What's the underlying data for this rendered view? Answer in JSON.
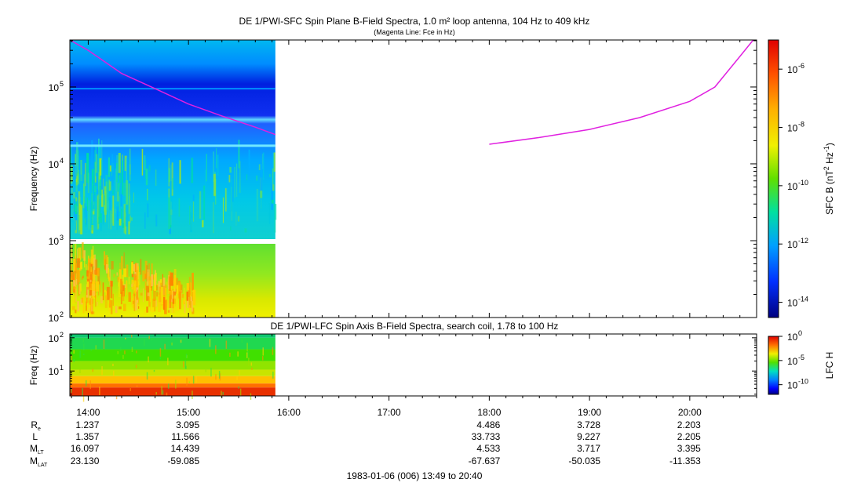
{
  "chart_data": [
    {
      "type": "heatmap",
      "title": "DE 1/PWI-SFC  Spin Plane B-Field Spectra, 1.0 m² loop antenna, 104 Hz to 409 kHz",
      "subtitle": "(Magenta Line: Fce in Hz)",
      "ylabel": "Frequency (Hz)",
      "y_scale": "log",
      "ylim": [
        100,
        409000
      ],
      "y_tick_labels": [
        "10",
        "10",
        "10",
        "10"
      ],
      "y_tick_exponents": [
        "2",
        "3",
        "4",
        "5"
      ],
      "x_range": [
        "13:49",
        "20:40"
      ],
      "data_coverage": [
        "13:49",
        "15:52"
      ],
      "colorbar": {
        "label": "SFC B (nT",
        "label_exp": "2",
        "label_mid": " Hz",
        "label_exp2": "-1",
        "label_end": ")",
        "scale": "log",
        "range": [
          3e-15,
          1e-05
        ],
        "tick_labels": [
          "10",
          "10",
          "10",
          "10",
          "10"
        ],
        "tick_exponents": [
          "-6",
          "-8",
          "-10",
          "-12",
          "-14"
        ]
      },
      "overlay": {
        "name": "Fce in Hz",
        "color": "#e020e0",
        "segments": [
          [
            [
              "13:49",
              550000
            ],
            [
              "14:00",
              300000
            ],
            [
              "14:20",
              150000
            ],
            [
              "14:40",
              95000
            ],
            [
              "15:00",
              60000
            ],
            [
              "15:20",
              42000
            ],
            [
              "15:40",
              30000
            ],
            [
              "15:52",
              24000
            ]
          ],
          [
            [
              "18:00",
              18000
            ],
            [
              "18:30",
              22000
            ],
            [
              "19:00",
              28000
            ],
            [
              "19:30",
              40000
            ],
            [
              "20:00",
              65000
            ],
            [
              "20:15",
              100000
            ],
            [
              "20:30",
              250000
            ],
            [
              "20:38",
              409000
            ]
          ]
        ]
      }
    },
    {
      "type": "heatmap",
      "title": "DE 1/PWI-LFC  Spin Axis B-Field Spectra, search coil, 1.78 to 100 Hz",
      "ylabel": "Freq (Hz)",
      "y_scale": "log",
      "ylim": [
        1.78,
        130
      ],
      "y_tick_labels": [
        "10",
        "10"
      ],
      "y_tick_exponents": [
        "1",
        "2"
      ],
      "x_range": [
        "13:49",
        "20:40"
      ],
      "data_coverage": [
        "13:49",
        "15:52"
      ],
      "colorbar": {
        "label": "LFC H",
        "scale": "log",
        "range": [
          1e-12,
          1
        ],
        "tick_labels": [
          "10",
          "10",
          "10"
        ],
        "tick_exponents": [
          "0",
          "-5",
          "-10"
        ]
      }
    }
  ],
  "x_axis": {
    "ticks": [
      "14:00",
      "15:00",
      "16:00",
      "17:00",
      "18:00",
      "19:00",
      "20:00"
    ]
  },
  "ephemeris": {
    "rows": [
      {
        "label": "R",
        "sub": "e",
        "values": [
          "1.237",
          "3.095",
          "",
          "",
          "4.486",
          "3.728",
          "2.203"
        ]
      },
      {
        "label": "L",
        "sub": "",
        "values": [
          "1.357",
          "11.566",
          "",
          "",
          "33.733",
          "9.227",
          "2.205"
        ]
      },
      {
        "label": "M",
        "sub": "LT",
        "values": [
          "16.097",
          "14.439",
          "",
          "",
          "4.533",
          "3.717",
          "3.395"
        ]
      },
      {
        "label": "M",
        "sub": "LAT",
        "values": [
          "23.130",
          "-59.085",
          "",
          "",
          "-67.637",
          "-50.035",
          "-11.353"
        ]
      }
    ]
  },
  "footer": "1983-01-06 (006) 13:49 to 20:40"
}
